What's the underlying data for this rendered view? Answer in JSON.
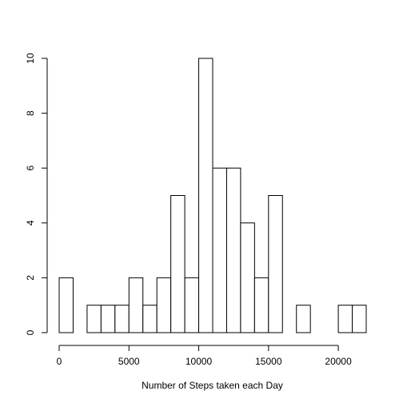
{
  "chart_data": {
    "type": "bar",
    "title": "",
    "xlabel": "Number of Steps taken each Day",
    "ylabel": "",
    "bin_width": 1000,
    "bin_starts": [
      0,
      1000,
      2000,
      3000,
      4000,
      5000,
      6000,
      7000,
      8000,
      9000,
      10000,
      11000,
      12000,
      13000,
      14000,
      15000,
      16000,
      17000,
      18000,
      19000,
      20000,
      21000
    ],
    "values": [
      2,
      0,
      1,
      1,
      1,
      2,
      1,
      2,
      5,
      2,
      10,
      6,
      6,
      4,
      2,
      5,
      0,
      1,
      0,
      0,
      1,
      1
    ],
    "xlim": [
      0,
      22000
    ],
    "ylim": [
      0,
      10
    ],
    "x_ticks": [
      0,
      5000,
      10000,
      15000,
      20000
    ],
    "x_tick_labels": [
      "0",
      "5000",
      "10000",
      "15000",
      "20000"
    ],
    "y_ticks": [
      0,
      2,
      4,
      6,
      8,
      10
    ],
    "y_tick_labels": [
      "0",
      "2",
      "4",
      "6",
      "8",
      "10"
    ],
    "grid": false,
    "colors": {
      "bar_fill": "#ffffff",
      "bar_stroke": "#000000"
    }
  }
}
